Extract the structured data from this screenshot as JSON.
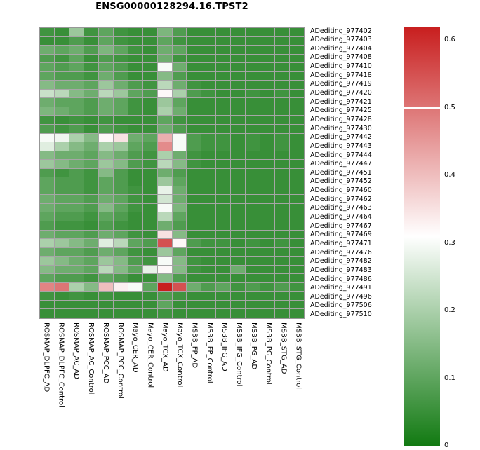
{
  "title": "ENSG00000128294.16.TPST2",
  "chart_data": {
    "type": "heatmap",
    "title": "ENSG00000128294.16.TPST2",
    "rows": [
      "ADediting_977402",
      "ADediting_977403",
      "ADediting_977404",
      "ADediting_977408",
      "ADediting_977410",
      "ADediting_977418",
      "ADediting_977419",
      "ADediting_977420",
      "ADediting_977421",
      "ADediting_977425",
      "ADediting_977428",
      "ADediting_977430",
      "ADediting_977442",
      "ADediting_977443",
      "ADediting_977444",
      "ADediting_977447",
      "ADediting_977451",
      "ADediting_977452",
      "ADediting_977460",
      "ADediting_977462",
      "ADediting_977463",
      "ADediting_977464",
      "ADediting_977467",
      "ADediting_977469",
      "ADediting_977471",
      "ADediting_977476",
      "ADediting_977482",
      "ADediting_977483",
      "ADediting_977486",
      "ADediting_977491",
      "ADediting_977496",
      "ADediting_977506",
      "ADediting_977510"
    ],
    "columns": [
      "ROSMAP_DLPFC_AD",
      "ROSMAP_DLPFC_Control",
      "ROSMAP_AC_AD",
      "ROSMAP_AC_Control",
      "ROSMAP_PCC_AD",
      "ROSMAP_PCC_Control",
      "Mayo_CER_AD",
      "Mayo_CER_Control",
      "Mayo_TCX_AD",
      "Mayo_TCX_Control",
      "MSBB_FP_AD",
      "MSBB_FP_Control",
      "MSBB_IFG_AD",
      "MSBB_IFG_Control",
      "MSBB_PG_AD",
      "MSBB_PG_Control",
      "MSBB_STG_AD",
      "MSBB_STG_Control"
    ],
    "values": [
      [
        0.06,
        0.05,
        0.18,
        0.06,
        0.1,
        0.06,
        0.05,
        0.05,
        0.14,
        0.08,
        0.05,
        0.05,
        0.05,
        0.05,
        0.05,
        0.05,
        0.05,
        0.05
      ],
      [
        0.05,
        0.05,
        0.08,
        0.05,
        0.1,
        0.06,
        0.05,
        0.05,
        0.1,
        0.06,
        0.05,
        0.05,
        0.05,
        0.05,
        0.05,
        0.05,
        0.05,
        0.05
      ],
      [
        0.12,
        0.1,
        0.12,
        0.08,
        0.14,
        0.1,
        0.06,
        0.05,
        0.12,
        0.1,
        0.05,
        0.05,
        0.05,
        0.05,
        0.05,
        0.05,
        0.05,
        0.05
      ],
      [
        0.08,
        0.06,
        0.1,
        0.05,
        0.08,
        0.06,
        0.05,
        0.05,
        0.12,
        0.06,
        0.05,
        0.05,
        0.05,
        0.05,
        0.05,
        0.05,
        0.05,
        0.05
      ],
      [
        0.1,
        0.08,
        0.1,
        0.06,
        0.1,
        0.08,
        0.05,
        0.05,
        0.3,
        0.12,
        0.05,
        0.05,
        0.05,
        0.05,
        0.05,
        0.05,
        0.05,
        0.05
      ],
      [
        0.1,
        0.08,
        0.08,
        0.06,
        0.12,
        0.08,
        0.05,
        0.05,
        0.15,
        0.08,
        0.05,
        0.05,
        0.05,
        0.05,
        0.05,
        0.05,
        0.05,
        0.05
      ],
      [
        0.15,
        0.12,
        0.12,
        0.1,
        0.18,
        0.12,
        0.08,
        0.06,
        0.22,
        0.12,
        0.06,
        0.05,
        0.05,
        0.05,
        0.05,
        0.05,
        0.05,
        0.05
      ],
      [
        0.24,
        0.22,
        0.15,
        0.12,
        0.22,
        0.18,
        0.1,
        0.08,
        0.32,
        0.2,
        0.08,
        0.06,
        0.05,
        0.05,
        0.06,
        0.05,
        0.06,
        0.05
      ],
      [
        0.12,
        0.1,
        0.1,
        0.08,
        0.12,
        0.1,
        0.06,
        0.05,
        0.18,
        0.1,
        0.05,
        0.05,
        0.05,
        0.05,
        0.05,
        0.05,
        0.05,
        0.05
      ],
      [
        0.14,
        0.12,
        0.1,
        0.08,
        0.12,
        0.1,
        0.06,
        0.05,
        0.2,
        0.12,
        0.05,
        0.05,
        0.05,
        0.05,
        0.05,
        0.05,
        0.05,
        0.05
      ],
      [
        0.06,
        0.05,
        0.06,
        0.05,
        0.06,
        0.05,
        0.05,
        0.05,
        0.1,
        0.06,
        0.05,
        0.05,
        0.05,
        0.05,
        0.05,
        0.05,
        0.05,
        0.05
      ],
      [
        0.08,
        0.06,
        0.08,
        0.05,
        0.08,
        0.06,
        0.05,
        0.05,
        0.12,
        0.08,
        0.05,
        0.05,
        0.05,
        0.05,
        0.05,
        0.05,
        0.05,
        0.05
      ],
      [
        0.3,
        0.29,
        0.2,
        0.15,
        0.32,
        0.35,
        0.12,
        0.1,
        0.42,
        0.3,
        0.08,
        0.06,
        0.06,
        0.05,
        0.06,
        0.05,
        0.06,
        0.05
      ],
      [
        0.27,
        0.2,
        0.15,
        0.12,
        0.2,
        0.18,
        0.1,
        0.08,
        0.47,
        0.3,
        0.08,
        0.06,
        0.06,
        0.05,
        0.06,
        0.05,
        0.06,
        0.05
      ],
      [
        0.15,
        0.12,
        0.12,
        0.1,
        0.15,
        0.12,
        0.08,
        0.06,
        0.2,
        0.12,
        0.06,
        0.05,
        0.05,
        0.05,
        0.05,
        0.05,
        0.05,
        0.05
      ],
      [
        0.18,
        0.15,
        0.12,
        0.1,
        0.18,
        0.15,
        0.08,
        0.06,
        0.22,
        0.15,
        0.06,
        0.05,
        0.05,
        0.05,
        0.05,
        0.05,
        0.05,
        0.05
      ],
      [
        0.08,
        0.06,
        0.08,
        0.06,
        0.15,
        0.08,
        0.05,
        0.05,
        0.12,
        0.08,
        0.05,
        0.05,
        0.05,
        0.05,
        0.05,
        0.05,
        0.05,
        0.05
      ],
      [
        0.1,
        0.08,
        0.08,
        0.06,
        0.1,
        0.08,
        0.05,
        0.05,
        0.18,
        0.1,
        0.05,
        0.05,
        0.05,
        0.05,
        0.05,
        0.05,
        0.05,
        0.05
      ],
      [
        0.1,
        0.08,
        0.08,
        0.06,
        0.1,
        0.08,
        0.06,
        0.05,
        0.28,
        0.12,
        0.05,
        0.05,
        0.05,
        0.05,
        0.05,
        0.05,
        0.05,
        0.05
      ],
      [
        0.12,
        0.1,
        0.1,
        0.08,
        0.12,
        0.1,
        0.06,
        0.05,
        0.25,
        0.12,
        0.05,
        0.05,
        0.05,
        0.05,
        0.05,
        0.05,
        0.05,
        0.05
      ],
      [
        0.12,
        0.1,
        0.1,
        0.08,
        0.15,
        0.1,
        0.06,
        0.05,
        0.3,
        0.14,
        0.05,
        0.05,
        0.05,
        0.05,
        0.05,
        0.05,
        0.05,
        0.05
      ],
      [
        0.1,
        0.08,
        0.08,
        0.06,
        0.1,
        0.08,
        0.05,
        0.05,
        0.22,
        0.1,
        0.05,
        0.05,
        0.05,
        0.05,
        0.05,
        0.05,
        0.05,
        0.05
      ],
      [
        0.08,
        0.06,
        0.06,
        0.05,
        0.08,
        0.06,
        0.05,
        0.05,
        0.12,
        0.08,
        0.05,
        0.05,
        0.05,
        0.05,
        0.05,
        0.05,
        0.05,
        0.05
      ],
      [
        0.12,
        0.1,
        0.1,
        0.08,
        0.12,
        0.1,
        0.06,
        0.05,
        0.35,
        0.15,
        0.05,
        0.05,
        0.05,
        0.05,
        0.05,
        0.05,
        0.05,
        0.05
      ],
      [
        0.2,
        0.18,
        0.15,
        0.12,
        0.27,
        0.22,
        0.1,
        0.08,
        0.55,
        0.32,
        0.08,
        0.06,
        0.06,
        0.05,
        0.06,
        0.05,
        0.06,
        0.05
      ],
      [
        0.12,
        0.1,
        0.1,
        0.08,
        0.12,
        0.1,
        0.06,
        0.05,
        0.18,
        0.1,
        0.05,
        0.05,
        0.05,
        0.05,
        0.05,
        0.05,
        0.05,
        0.05
      ],
      [
        0.18,
        0.15,
        0.12,
        0.1,
        0.18,
        0.15,
        0.08,
        0.06,
        0.3,
        0.15,
        0.06,
        0.05,
        0.05,
        0.05,
        0.05,
        0.05,
        0.05,
        0.05
      ],
      [
        0.15,
        0.12,
        0.12,
        0.1,
        0.22,
        0.15,
        0.1,
        0.28,
        0.32,
        0.15,
        0.06,
        0.05,
        0.05,
        0.12,
        0.05,
        0.05,
        0.05,
        0.05
      ],
      [
        0.1,
        0.08,
        0.08,
        0.06,
        0.1,
        0.08,
        0.05,
        0.05,
        0.15,
        0.08,
        0.05,
        0.05,
        0.05,
        0.05,
        0.05,
        0.05,
        0.05,
        0.05
      ],
      [
        0.48,
        0.5,
        0.2,
        0.15,
        0.4,
        0.33,
        0.3,
        0.1,
        0.62,
        0.55,
        0.12,
        0.08,
        0.1,
        0.06,
        0.08,
        0.06,
        0.08,
        0.06
      ],
      [
        0.06,
        0.05,
        0.06,
        0.05,
        0.06,
        0.05,
        0.05,
        0.05,
        0.08,
        0.06,
        0.05,
        0.05,
        0.05,
        0.05,
        0.05,
        0.05,
        0.05,
        0.05
      ],
      [
        0.05,
        0.05,
        0.05,
        0.05,
        0.05,
        0.05,
        0.05,
        0.05,
        0.1,
        0.05,
        0.05,
        0.05,
        0.05,
        0.05,
        0.05,
        0.05,
        0.05,
        0.05
      ],
      [
        0.05,
        0.05,
        0.05,
        0.05,
        0.05,
        0.05,
        0.05,
        0.05,
        0.06,
        0.05,
        0.05,
        0.05,
        0.05,
        0.05,
        0.05,
        0.05,
        0.05,
        0.05
      ]
    ],
    "color_scale": {
      "min": 0,
      "mid_white": 0.31,
      "max": 0.62,
      "min_color": "#127a12",
      "mid_color": "#ffffff",
      "max_color": "#c81e1e",
      "grid_line_color": "#a6a6a6",
      "marker_line_value": 0.5
    },
    "colorbar_ticks": [
      {
        "value": 0.6,
        "label": "0.6"
      },
      {
        "value": 0.5,
        "label": "0.5"
      },
      {
        "value": 0.4,
        "label": "0.4"
      },
      {
        "value": 0.3,
        "label": "0.3"
      },
      {
        "value": 0.2,
        "label": "0.2"
      },
      {
        "value": 0.1,
        "label": "0.1"
      },
      {
        "value": 0.0,
        "label": "0"
      }
    ],
    "legend_position": "right",
    "grid": true
  }
}
